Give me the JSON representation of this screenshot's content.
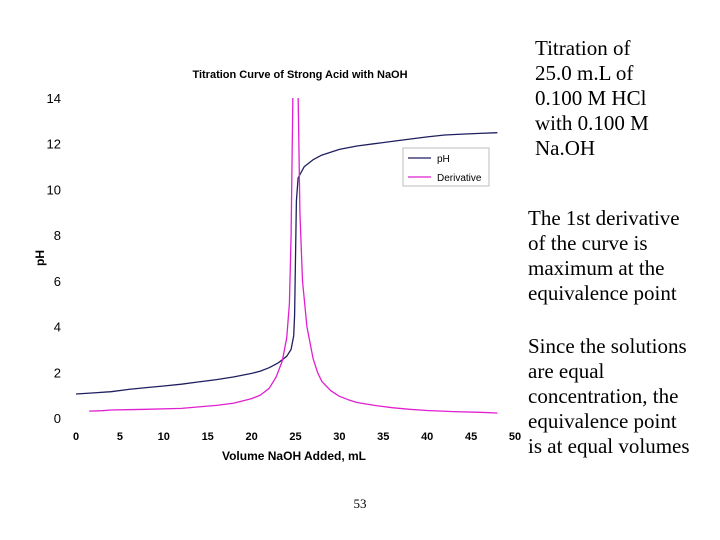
{
  "chart_data": {
    "type": "line",
    "title": "Titration Curve of Strong Acid with NaOH",
    "xlabel": "Volume NaOH Added, mL",
    "ylabel": "pH",
    "xlim": [
      0,
      50
    ],
    "ylim": [
      0,
      14
    ],
    "x_ticks": [
      0,
      5,
      10,
      15,
      20,
      25,
      30,
      35,
      40,
      45,
      50
    ],
    "y_ticks": [
      0,
      2,
      4,
      6,
      8,
      10,
      12,
      14
    ],
    "grid": false,
    "legend_position": "right",
    "series": [
      {
        "name": "pH",
        "color": "#1f1f5f",
        "points": [
          [
            0,
            1.05
          ],
          [
            2,
            1.1
          ],
          [
            4,
            1.15
          ],
          [
            6,
            1.25
          ],
          [
            8,
            1.33
          ],
          [
            10,
            1.4
          ],
          [
            12,
            1.48
          ],
          [
            14,
            1.58
          ],
          [
            16,
            1.68
          ],
          [
            18,
            1.8
          ],
          [
            20,
            1.95
          ],
          [
            21,
            2.05
          ],
          [
            22,
            2.2
          ],
          [
            23,
            2.4
          ],
          [
            24,
            2.7
          ],
          [
            24.5,
            3.0
          ],
          [
            24.8,
            3.6
          ],
          [
            24.9,
            4.5
          ],
          [
            25,
            7.0
          ],
          [
            25.1,
            9.5
          ],
          [
            25.3,
            10.5
          ],
          [
            26,
            11.0
          ],
          [
            27,
            11.3
          ],
          [
            28,
            11.5
          ],
          [
            30,
            11.75
          ],
          [
            32,
            11.9
          ],
          [
            34,
            12.0
          ],
          [
            36,
            12.1
          ],
          [
            38,
            12.2
          ],
          [
            40,
            12.3
          ],
          [
            42,
            12.38
          ],
          [
            44,
            12.42
          ],
          [
            46,
            12.45
          ],
          [
            48,
            12.48
          ]
        ]
      },
      {
        "name": "Derivative",
        "color": "#e020d0",
        "points": [
          [
            1.5,
            0.3
          ],
          [
            3,
            0.32
          ],
          [
            4,
            0.35
          ],
          [
            8,
            0.38
          ],
          [
            12,
            0.42
          ],
          [
            16,
            0.55
          ],
          [
            18,
            0.65
          ],
          [
            20,
            0.85
          ],
          [
            21,
            1.0
          ],
          [
            22,
            1.3
          ],
          [
            22.8,
            1.8
          ],
          [
            23.5,
            2.5
          ],
          [
            24,
            3.5
          ],
          [
            24.3,
            5.0
          ],
          [
            24.5,
            8.0
          ],
          [
            24.7,
            14.2
          ],
          [
            25.3,
            14.2
          ],
          [
            25.5,
            9.0
          ],
          [
            25.8,
            6.0
          ],
          [
            26.3,
            4.0
          ],
          [
            27,
            2.6
          ],
          [
            27.5,
            2.0
          ],
          [
            28,
            1.6
          ],
          [
            29,
            1.2
          ],
          [
            30,
            0.95
          ],
          [
            31,
            0.8
          ],
          [
            32,
            0.68
          ],
          [
            34,
            0.55
          ],
          [
            36,
            0.45
          ],
          [
            38,
            0.38
          ],
          [
            40,
            0.33
          ],
          [
            43,
            0.28
          ],
          [
            46,
            0.25
          ],
          [
            48,
            0.22
          ]
        ]
      }
    ]
  },
  "notes": [
    [
      "Titration of",
      "25.0 m.L of",
      "0.100 M HCl",
      "with 0.100 M",
      "Na.OH"
    ],
    [
      "The 1st derivative",
      "of the curve is",
      "maximum at the",
      "equivalence point"
    ],
    [
      "Since the solutions",
      "are equal",
      "concentration, the",
      "equivalence point",
      "is at equal volumes"
    ]
  ],
  "page_number": "53"
}
